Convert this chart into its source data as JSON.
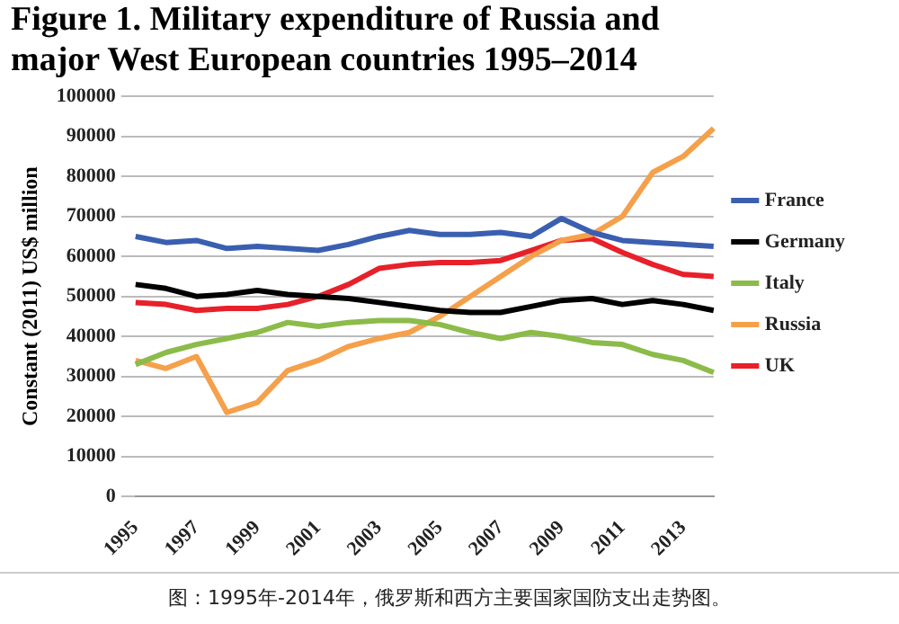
{
  "chart_data": {
    "type": "line",
    "title": "Figure 1. Military expenditure of Russia and major West European countries 1995–2014",
    "ylabel": "Constant (2011) US$ million",
    "categories": [
      "1995",
      null,
      "1997",
      null,
      "1999",
      null,
      "2001",
      null,
      "2003",
      null,
      "2005",
      null,
      "2007",
      null,
      "2009",
      null,
      "2011",
      null,
      "2013",
      null
    ],
    "series": [
      {
        "name": "France",
        "color": "#3a5fb0",
        "values": [
          65000,
          63500,
          64000,
          62000,
          62500,
          62000,
          61500,
          63000,
          65000,
          66500,
          65500,
          65500,
          66000,
          65000,
          69500,
          66000,
          64000,
          63500,
          63000,
          62500
        ]
      },
      {
        "name": "Germany",
        "color": "#000000",
        "values": [
          53000,
          52000,
          50000,
          50500,
          51500,
          50500,
          50000,
          49500,
          48500,
          47500,
          46500,
          46000,
          46000,
          47500,
          49000,
          49500,
          48000,
          49000,
          48000,
          46500
        ]
      },
      {
        "name": "Italy",
        "color": "#8cbb4a",
        "values": [
          33000,
          36000,
          38000,
          39500,
          41000,
          43500,
          42500,
          43500,
          44000,
          44000,
          43000,
          41000,
          39500,
          41000,
          40000,
          38500,
          38000,
          35500,
          34000,
          31000
        ]
      },
      {
        "name": "Russia",
        "color": "#f5a04a",
        "values": [
          34000,
          32000,
          35000,
          21000,
          23500,
          31500,
          34000,
          37500,
          39500,
          41000,
          45000,
          50000,
          55000,
          60000,
          64000,
          65500,
          70000,
          81000,
          85000,
          92000
        ]
      },
      {
        "name": "UK",
        "color": "#e8202a",
        "values": [
          48500,
          48000,
          46500,
          47000,
          47000,
          48000,
          50000,
          53000,
          57000,
          58000,
          58500,
          58500,
          59000,
          61500,
          64000,
          64500,
          61000,
          58000,
          55500,
          55000
        ]
      }
    ],
    "ylim": [
      0,
      100000
    ],
    "yticks": [
      0,
      10000,
      20000,
      30000,
      40000,
      50000,
      60000,
      70000,
      80000,
      90000,
      100000
    ],
    "grid": "y",
    "legend": "right",
    "marker": "none",
    "line_style": "solid",
    "annotations": [
      "图：1995年-2014年，俄罗斯和西方主要国家国防支出走势图。"
    ]
  }
}
